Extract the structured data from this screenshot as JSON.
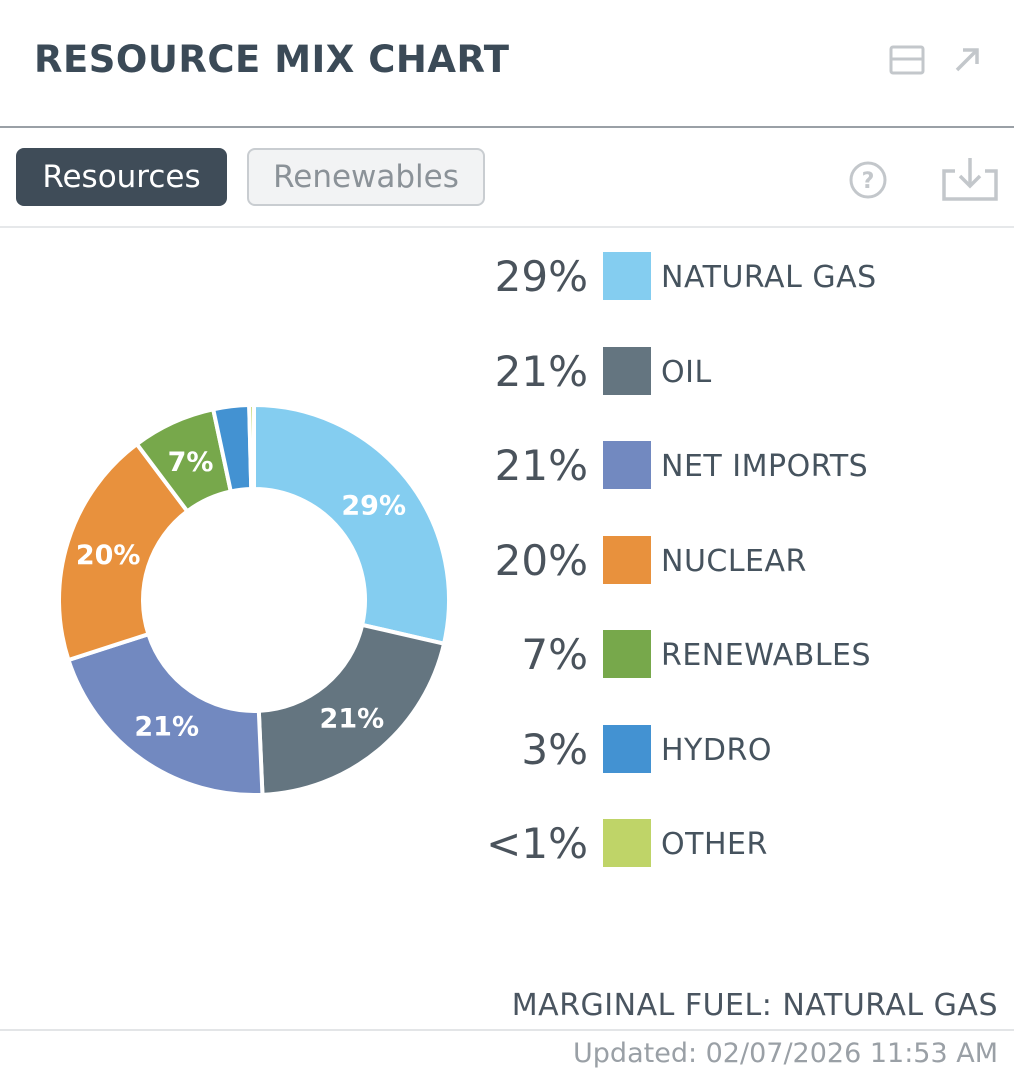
{
  "header": {
    "title": "RESOURCE MIX CHART",
    "icons": [
      "minimize-icon",
      "expand-arrow-icon"
    ]
  },
  "tabs": [
    {
      "label": "Resources",
      "active": true
    },
    {
      "label": "Renewables",
      "active": false
    }
  ],
  "toolbar_icons": [
    "help-icon",
    "download-icon"
  ],
  "chart_data": {
    "type": "pie",
    "donut": true,
    "categories": [
      "NATURAL GAS",
      "OIL",
      "NET IMPORTS",
      "NUCLEAR",
      "RENEWABLES",
      "HYDRO",
      "OTHER"
    ],
    "values": [
      29,
      21,
      21,
      20,
      7,
      3,
      0.4
    ],
    "display": [
      "29%",
      "21%",
      "21%",
      "20%",
      "7%",
      "3%",
      "<1%"
    ],
    "colors": [
      "#84cdf0",
      "#647580",
      "#7289c0",
      "#e8913d",
      "#77a84b",
      "#4392d2",
      "#bfd468"
    ],
    "legend": "right"
  },
  "marginal_fuel": "MARGINAL FUEL: NATURAL GAS",
  "updated": "Updated: 02/07/2026 11:53 AM"
}
